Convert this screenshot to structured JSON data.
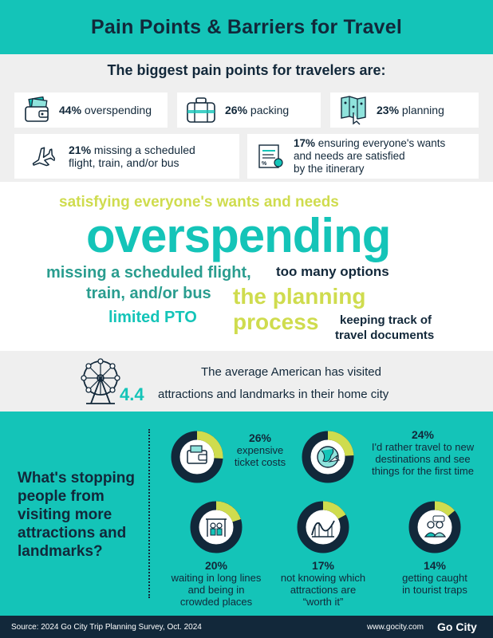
{
  "header": {
    "title": "Pain Points & Barriers for Travel"
  },
  "pain_points": {
    "title": "The biggest pain points for travelers are:",
    "items": [
      {
        "pct": "44%",
        "label": "overspending",
        "icon": "wallet-icon"
      },
      {
        "pct": "26%",
        "label": "packing",
        "icon": "suitcase-icon"
      },
      {
        "pct": "23%",
        "label": "planning",
        "icon": "map-icon"
      },
      {
        "pct": "21%",
        "label_lines": [
          "missing a scheduled",
          "flight, train, and/or bus"
        ],
        "icon": "airplane-icon"
      },
      {
        "pct": "17%",
        "label_lines": [
          "ensuring everyone's wants",
          "and needs are satisfied",
          "by the itinerary"
        ],
        "icon": "itinerary-icon"
      }
    ]
  },
  "word_cloud": {
    "words": [
      {
        "text": "satisfying everyone's wants and needs",
        "color": "#cfdc4e"
      },
      {
        "text": "overspending",
        "color": "#14c4b8"
      },
      {
        "text": "missing a scheduled flight,",
        "color": "#2a9d8f"
      },
      {
        "text": "train, and/or bus",
        "color": "#2a9d8f"
      },
      {
        "text": "too many options",
        "color": "#12283a"
      },
      {
        "text": "the planning",
        "color": "#cfdc4e"
      },
      {
        "text": "process",
        "color": "#cfdc4e"
      },
      {
        "text": "limited PTO",
        "color": "#14c4b8"
      },
      {
        "text": "keeping track of",
        "color": "#12283a"
      },
      {
        "text": "travel documents",
        "color": "#12283a"
      }
    ]
  },
  "average": {
    "line1": "The average American has visited",
    "number": "4.4",
    "line2": "attractions and landmarks in their home city",
    "icon": "ferris-wheel-icon"
  },
  "stopping": {
    "question": "What's stopping people from visiting more attractions and landmarks?",
    "stats": [
      {
        "pct": "26%",
        "fraction": 0.26,
        "lines": [
          "expensive",
          "ticket costs"
        ],
        "icon": "wallet-icon"
      },
      {
        "pct": "24%",
        "fraction": 0.24,
        "lines": [
          "I'd rather travel to new",
          "destinations and see",
          "things for the first time"
        ],
        "icon": "globe-icon"
      },
      {
        "pct": "20%",
        "fraction": 0.2,
        "lines": [
          "waiting in long lines",
          "and being in",
          "crowded places"
        ],
        "icon": "queue-icon"
      },
      {
        "pct": "17%",
        "fraction": 0.17,
        "lines": [
          "not knowing which",
          "attractions are",
          "“worth it”"
        ],
        "icon": "roller-coaster-icon"
      },
      {
        "pct": "14%",
        "fraction": 0.14,
        "lines": [
          "getting caught",
          "in tourist traps"
        ],
        "icon": "tourists-icon"
      }
    ]
  },
  "footer": {
    "source": "Source:  2024 Go City Trip Planning Survey, Oct. 2024",
    "url": "www.gocity.com",
    "logo": "Go City"
  },
  "colors": {
    "teal": "#14c4b8",
    "navy": "#12283a",
    "lime": "#cfdc4e",
    "grey": "#efefef"
  }
}
